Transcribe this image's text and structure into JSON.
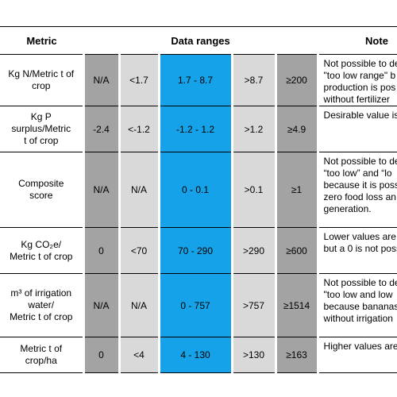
{
  "header": {
    "metric": "Metric",
    "data_ranges": "Data ranges",
    "notes": "Note"
  },
  "rows": [
    {
      "metric": [
        "Kg N/Metric t of",
        "crop"
      ],
      "ranges": [
        "N/A",
        "<1.7",
        "1.7 - 8.7",
        ">8.7",
        "≥200"
      ],
      "notes": [
        "Not possible to de",
        "\"too low range\" b",
        "production is pos",
        "without fertilizer"
      ]
    },
    {
      "metric": [
        "Kg P",
        "surplus/Metric",
        "t of crop"
      ],
      "ranges": [
        "-2.4",
        "<-1.2",
        "-1.2 - 1.2",
        ">1.2",
        "≥4.9"
      ],
      "notes": [
        "Desirable value is"
      ]
    },
    {
      "metric": [
        "Composite",
        "score"
      ],
      "ranges": [
        "N/A",
        "N/A",
        "0 - 0.1",
        ">0.1",
        "≥1"
      ],
      "notes": [
        "Not possible to de",
        "“too low” and “lo",
        "because it is poss",
        "zero food loss an",
        "generation."
      ]
    },
    {
      "metric": [
        "Kg CO₂e/",
        "Metric t of crop"
      ],
      "ranges": [
        "0",
        "<70",
        "70 - 290",
        ">290",
        "≥600"
      ],
      "notes": [
        "Lower values are",
        "but a 0 is not poss"
      ]
    },
    {
      "metric": [
        "m³ of irrigation",
        "water/",
        "Metric t of crop"
      ],
      "ranges": [
        "N/A",
        "N/A",
        "0 - 757",
        ">757",
        "≥1514"
      ],
      "notes": [
        "Not possible to de",
        "\"too low and low",
        "because bananas",
        "without irrigation"
      ]
    },
    {
      "metric": [
        "Metric t of",
        "crop/ha"
      ],
      "ranges": [
        "0",
        "<4",
        "4 - 130",
        ">130",
        "≥163"
      ],
      "notes": [
        "Higher values are"
      ]
    }
  ]
}
